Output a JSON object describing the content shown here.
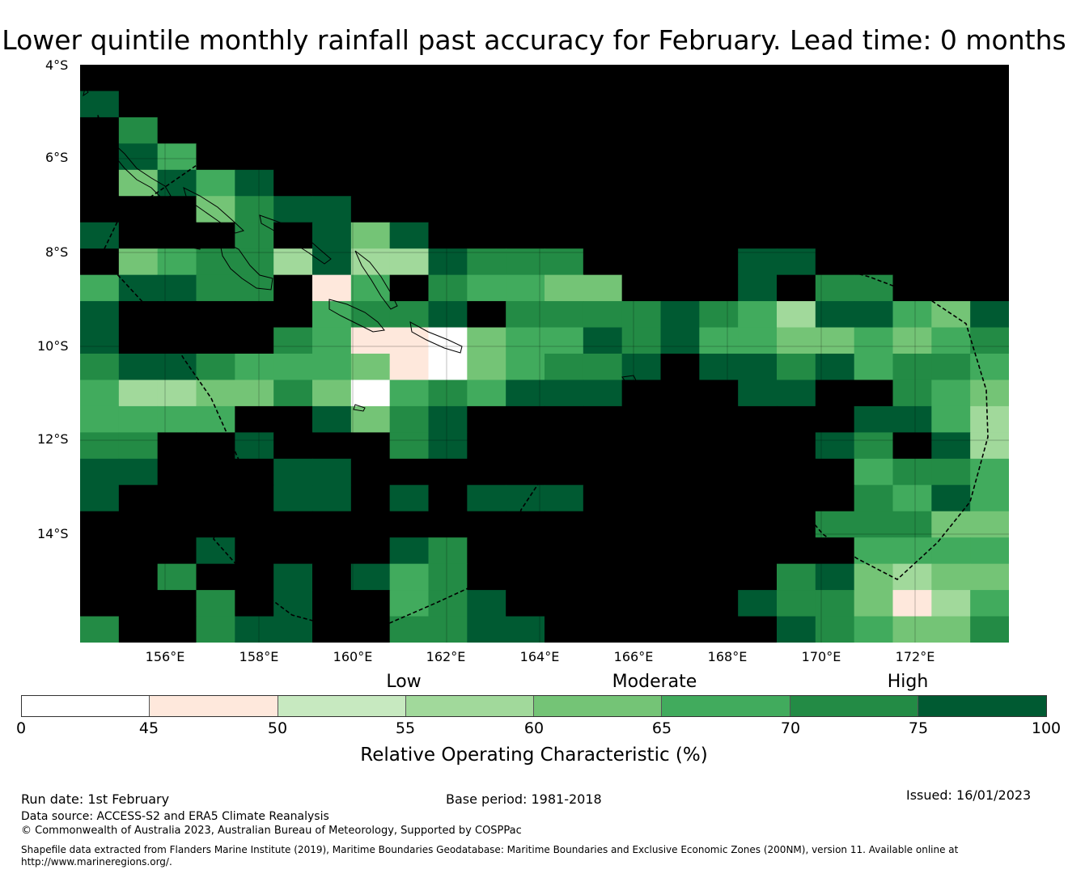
{
  "title": "Lower quintile monthly rainfall past accuracy for February. Lead time: 0 months",
  "map": {
    "lat_labels": [
      "4°S",
      "6°S",
      "8°S",
      "10°S",
      "12°S",
      "14°S"
    ],
    "lon_labels": [
      "156°E",
      "158°E",
      "160°E",
      "162°E",
      "164°E",
      "166°E",
      "168°E",
      "170°E",
      "172°E"
    ],
    "grid_lon_start": 154.2,
    "grid_lon_step": 0.8333,
    "grid_lat_start": -4.45,
    "grid_lat_step": 0.5556,
    "grid": [
      [
        8,
        8,
        8,
        8,
        8,
        8,
        8,
        8,
        8,
        8,
        8,
        8,
        8,
        8,
        8,
        8,
        8,
        8,
        8,
        8,
        8,
        8,
        8,
        8
      ],
      [
        7,
        8,
        8,
        8,
        8,
        8,
        8,
        8,
        8,
        8,
        8,
        8,
        8,
        8,
        8,
        8,
        8,
        8,
        8,
        8,
        8,
        8,
        8,
        8
      ],
      [
        8,
        6,
        8,
        8,
        8,
        8,
        8,
        8,
        8,
        8,
        8,
        8,
        8,
        8,
        8,
        8,
        8,
        8,
        8,
        8,
        8,
        8,
        8,
        8
      ],
      [
        8,
        7,
        5,
        8,
        8,
        8,
        8,
        8,
        8,
        8,
        8,
        8,
        8,
        8,
        8,
        8,
        8,
        8,
        8,
        8,
        8,
        8,
        8,
        8
      ],
      [
        8,
        4,
        7,
        5,
        7,
        8,
        8,
        8,
        8,
        8,
        8,
        8,
        8,
        8,
        8,
        8,
        8,
        8,
        8,
        8,
        8,
        8,
        8,
        8
      ],
      [
        8,
        8,
        8,
        4,
        6,
        7,
        7,
        8,
        8,
        8,
        8,
        8,
        8,
        8,
        8,
        8,
        8,
        8,
        8,
        8,
        8,
        8,
        8,
        8
      ],
      [
        7,
        8,
        8,
        8,
        6,
        8,
        7,
        4,
        7,
        8,
        8,
        8,
        8,
        8,
        8,
        8,
        8,
        8,
        8,
        8,
        8,
        8,
        8,
        8
      ],
      [
        8,
        4,
        5,
        6,
        6,
        3,
        7,
        3,
        3,
        7,
        6,
        6,
        6,
        8,
        8,
        8,
        8,
        7,
        7,
        8,
        8,
        8,
        8,
        8
      ],
      [
        5,
        7,
        7,
        6,
        6,
        8,
        1,
        5,
        8,
        6,
        5,
        5,
        4,
        4,
        8,
        8,
        8,
        7,
        8,
        6,
        6,
        8,
        8,
        8
      ],
      [
        7,
        8,
        8,
        8,
        8,
        8,
        5,
        6,
        6,
        7,
        8,
        6,
        6,
        6,
        6,
        7,
        6,
        5,
        3,
        7,
        7,
        5,
        4,
        7
      ],
      [
        7,
        8,
        8,
        8,
        8,
        6,
        5,
        1,
        1,
        0,
        4,
        5,
        5,
        7,
        6,
        7,
        5,
        5,
        4,
        4,
        5,
        4,
        5,
        6
      ],
      [
        6,
        7,
        7,
        6,
        5,
        5,
        5,
        4,
        1,
        0,
        4,
        5,
        6,
        6,
        7,
        8,
        7,
        7,
        6,
        7,
        5,
        6,
        6,
        5
      ],
      [
        5,
        3,
        3,
        4,
        4,
        6,
        4,
        0,
        5,
        6,
        5,
        7,
        7,
        7,
        8,
        8,
        8,
        7,
        7,
        8,
        8,
        6,
        5,
        4
      ],
      [
        5,
        5,
        5,
        5,
        8,
        8,
        7,
        4,
        6,
        7,
        8,
        8,
        8,
        8,
        8,
        8,
        8,
        8,
        8,
        8,
        7,
        7,
        5,
        3
      ],
      [
        6,
        6,
        8,
        8,
        7,
        8,
        8,
        8,
        6,
        7,
        8,
        8,
        8,
        8,
        8,
        8,
        8,
        8,
        8,
        7,
        6,
        8,
        7,
        3
      ],
      [
        7,
        7,
        8,
        8,
        8,
        7,
        7,
        8,
        8,
        8,
        8,
        8,
        8,
        8,
        8,
        8,
        8,
        8,
        8,
        8,
        5,
        6,
        6,
        5
      ],
      [
        7,
        8,
        8,
        8,
        8,
        7,
        7,
        8,
        7,
        8,
        7,
        7,
        7,
        8,
        8,
        8,
        8,
        8,
        8,
        8,
        6,
        5,
        7,
        5
      ],
      [
        8,
        8,
        8,
        8,
        8,
        8,
        8,
        8,
        8,
        8,
        8,
        8,
        8,
        8,
        8,
        8,
        8,
        8,
        8,
        6,
        6,
        6,
        4,
        4
      ],
      [
        8,
        8,
        8,
        7,
        8,
        8,
        8,
        8,
        7,
        6,
        8,
        8,
        8,
        8,
        8,
        8,
        8,
        8,
        8,
        8,
        5,
        5,
        5,
        5
      ],
      [
        8,
        8,
        6,
        8,
        8,
        7,
        8,
        7,
        5,
        6,
        8,
        8,
        8,
        8,
        8,
        8,
        8,
        8,
        6,
        7,
        4,
        3,
        4,
        4
      ],
      [
        8,
        8,
        8,
        6,
        8,
        7,
        8,
        8,
        5,
        6,
        7,
        8,
        8,
        8,
        8,
        8,
        8,
        7,
        6,
        6,
        4,
        1,
        3,
        5
      ],
      [
        6,
        8,
        8,
        6,
        7,
        7,
        8,
        8,
        6,
        6,
        7,
        7,
        8,
        8,
        8,
        8,
        8,
        8,
        7,
        6,
        5,
        4,
        4,
        6
      ]
    ]
  },
  "colorbar": {
    "categories": [
      "Low",
      "Moderate",
      "High"
    ],
    "ticks": [
      "0",
      "45",
      "50",
      "55",
      "60",
      "65",
      "70",
      "75",
      "100"
    ],
    "colors": [
      "#ffffff",
      "#fee8dc",
      "#c7e9c0",
      "#a1d99b",
      "#74c476",
      "#41ab5d",
      "#238b45",
      "#005a32"
    ],
    "label": "Relative Operating Characteristic (%)"
  },
  "footer": {
    "run_date": "Run date: 1st February",
    "base_period": "Base period: 1981-2018",
    "issued": "Issued: 16/01/2023",
    "data_source": "Data source: ACCESS-S2 and ERA5 Climate Reanalysis",
    "copyright": "© Commonwealth of Australia 2023, Australian Bureau of Meteorology, Supported by COSPPac",
    "shapefile_line1": "Shapefile data extracted from Flanders Marine Institute (2019), Maritime Boundaries Geodatabase: Maritime Boundaries and Exclusive Economic Zones (200NM), version 11. Available online at",
    "shapefile_line2": "http://www.marineregions.org/."
  }
}
